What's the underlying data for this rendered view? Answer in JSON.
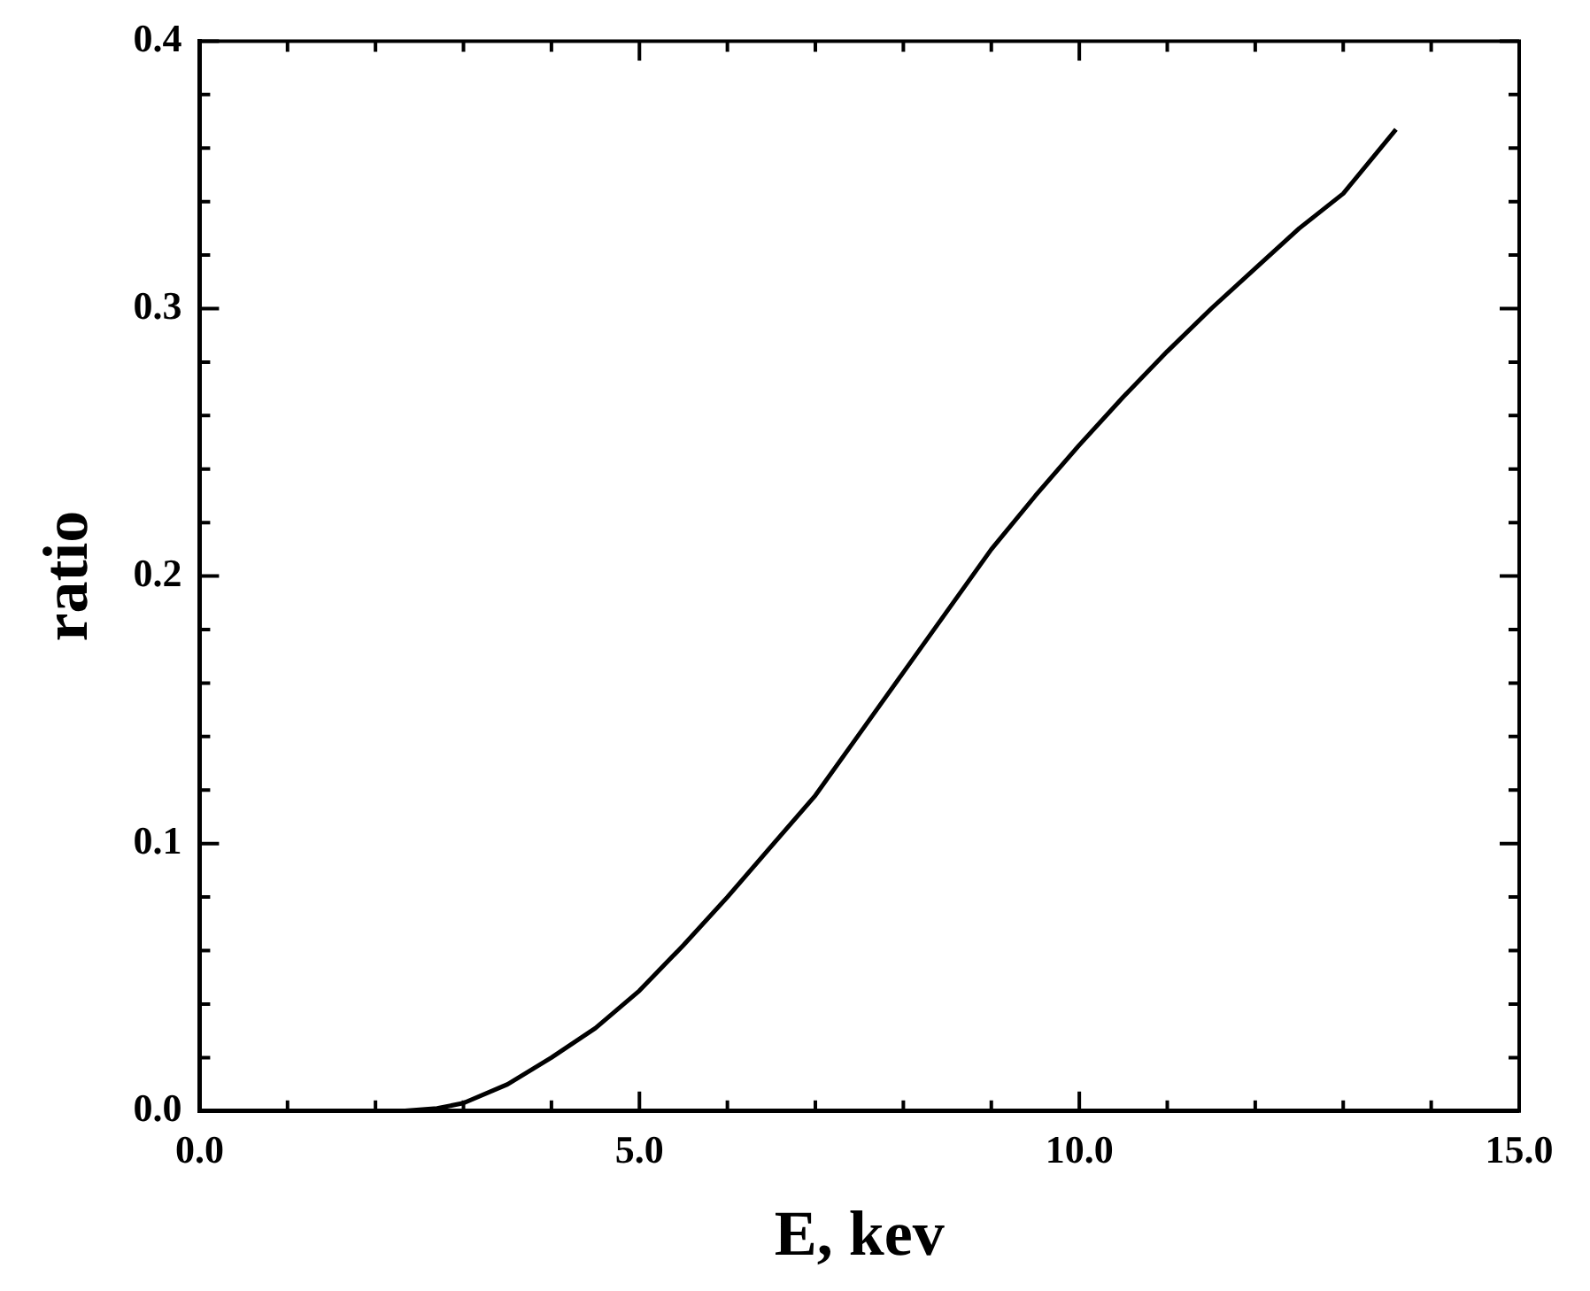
{
  "chart_data": {
    "type": "line",
    "xlabel": "E, kev",
    "ylabel": "ratio",
    "series": [
      {
        "color": "#000000",
        "x": [
          2.3,
          2.7,
          3,
          3.5,
          4,
          4.5,
          5,
          5.5,
          6,
          6.5,
          7,
          7.5,
          8,
          8.5,
          9,
          9.5,
          10,
          10.5,
          11,
          11.5,
          12,
          12.5,
          13,
          13.6
        ],
        "values": [
          0,
          0.001,
          0.003,
          0.01,
          0.02,
          0.031,
          0.045,
          0.062,
          0.08,
          0.099,
          0.118,
          0.141,
          0.164,
          0.187,
          0.21,
          0.23,
          0.249,
          0.267,
          0.284,
          0.3,
          0.315,
          0.33,
          0.343,
          0.367
        ]
      }
    ],
    "xlim": [
      0,
      15
    ],
    "ylim": [
      0,
      0.4
    ],
    "xticks": [
      {
        "value": 0,
        "label": "0.0"
      },
      {
        "value": 1,
        "label": null
      },
      {
        "value": 2,
        "label": null
      },
      {
        "value": 3,
        "label": null
      },
      {
        "value": 4,
        "label": null
      },
      {
        "value": 5,
        "label": "5.0"
      },
      {
        "value": 6,
        "label": null
      },
      {
        "value": 7,
        "label": null
      },
      {
        "value": 8,
        "label": null
      },
      {
        "value": 9,
        "label": null
      },
      {
        "value": 10,
        "label": "10.0"
      },
      {
        "value": 11,
        "label": null
      },
      {
        "value": 12,
        "label": null
      },
      {
        "value": 13,
        "label": null
      },
      {
        "value": 14,
        "label": null
      },
      {
        "value": 15,
        "label": "15.0"
      }
    ],
    "yticks": [
      {
        "value": 0,
        "label": "0.0"
      },
      {
        "value": 0.02,
        "label": null
      },
      {
        "value": 0.04,
        "label": null
      },
      {
        "value": 0.06,
        "label": null
      },
      {
        "value": 0.08,
        "label": null
      },
      {
        "value": 0.1,
        "label": "0.1"
      },
      {
        "value": 0.12,
        "label": null
      },
      {
        "value": 0.14,
        "label": null
      },
      {
        "value": 0.16,
        "label": null
      },
      {
        "value": 0.18,
        "label": null
      },
      {
        "value": 0.2,
        "label": "0.2"
      },
      {
        "value": 0.22,
        "label": null
      },
      {
        "value": 0.24,
        "label": null
      },
      {
        "value": 0.26,
        "label": null
      },
      {
        "value": 0.28,
        "label": null
      },
      {
        "value": 0.3,
        "label": "0.3"
      },
      {
        "value": 0.32,
        "label": null
      },
      {
        "value": 0.34,
        "label": null
      },
      {
        "value": 0.36,
        "label": null
      },
      {
        "value": 0.38,
        "label": null
      },
      {
        "value": 0.4,
        "label": "0.4"
      }
    ],
    "grid": false,
    "legend": false,
    "marker": "none",
    "line_style": "solid"
  }
}
